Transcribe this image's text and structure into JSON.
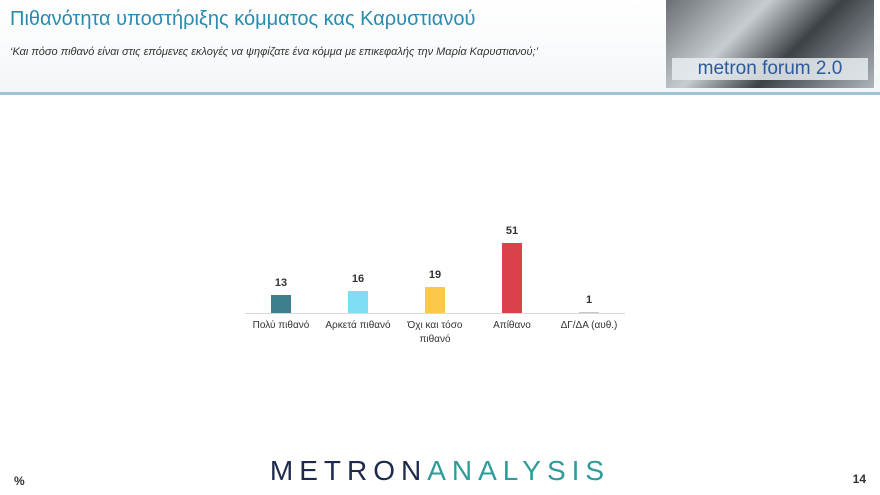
{
  "chart_data": {
    "type": "bar",
    "title": "Πιθανότητα υποστήριξης κόμματος κας Καρυστιανού",
    "subtitle": "‘Και πόσο πιθανό είναι στις επόμενες εκλογές να ψηφίζατε ένα κόμμα με επικεφαλής την Μαρία Καρυστιανού;’",
    "categories": [
      "Πολύ πιθανό",
      "Αρκετά πιθανό",
      "Όχι και τόσο πιθανό",
      "Απίθανο",
      "ΔΓ/ΔΑ (αυθ.)"
    ],
    "values": [
      13,
      16,
      19,
      51,
      1
    ],
    "colors": [
      "#3d7f8c",
      "#7fdcf5",
      "#fbc84a",
      "#d9424a",
      "#c8c8c8"
    ],
    "unit": "%"
  },
  "logo": "metron forum 2.0",
  "brand": {
    "part1": "METRON",
    "part2": "ANALYSIS"
  },
  "page_number": "14"
}
